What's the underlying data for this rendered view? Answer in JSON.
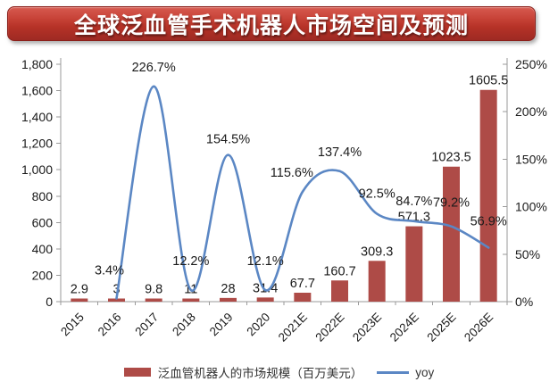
{
  "banner": {
    "title": "全球泛血管手术机器人市场空间及预测"
  },
  "chart_data": {
    "type": "combo-bar-line",
    "categories": [
      "2015",
      "2016",
      "2017",
      "2018",
      "2019",
      "2020",
      "2021E",
      "2022E",
      "2023E",
      "2024E",
      "2025E",
      "2026E"
    ],
    "series": [
      {
        "name": "泛血管机器人的市场规模（百万美元）",
        "type": "bar",
        "axis": "left",
        "color": "#AE4B47",
        "values": [
          2.9,
          3,
          9.8,
          11,
          28,
          31.4,
          67.7,
          160.7,
          309.3,
          571.3,
          1023.5,
          1605.5
        ],
        "labels": [
          "2.9",
          "3",
          "9.8",
          "11",
          "28",
          "31.4",
          "67.7",
          "160.7",
          "309.3",
          "571.3",
          "1023.5",
          "1605.5"
        ]
      },
      {
        "name": "yoy",
        "type": "line",
        "axis": "right",
        "color": "#5B87C4",
        "values": [
          null,
          3.4,
          226.7,
          12.2,
          154.5,
          12.1,
          115.6,
          137.4,
          92.5,
          84.7,
          79.2,
          56.9
        ],
        "labels": [
          null,
          "3.4%",
          "226.7%",
          "12.2%",
          "154.5%",
          "12.1%",
          "115.6%",
          "137.4%",
          "92.5%",
          "84.7%",
          "79.2%",
          "56.9%"
        ]
      }
    ],
    "left_axis": {
      "min": 0,
      "max": 1800,
      "step": 200,
      "tick_labels": [
        "0",
        "200",
        "400",
        "600",
        "800",
        "1,000",
        "1,200",
        "1,400",
        "1,600",
        "1,800"
      ]
    },
    "right_axis": {
      "min": 0,
      "max": 250,
      "step": 50,
      "tick_labels": [
        "0%",
        "50%",
        "100%",
        "150%",
        "200%",
        "250%"
      ]
    },
    "legend": [
      {
        "label": "泛血管机器人的市场规模（百万美元）",
        "type": "bar",
        "color": "#AE4B47"
      },
      {
        "label": "yoy",
        "type": "line",
        "color": "#5B87C4"
      }
    ],
    "text_color": "#1a1a1a",
    "axis_line_color": "#9a9a9a"
  }
}
